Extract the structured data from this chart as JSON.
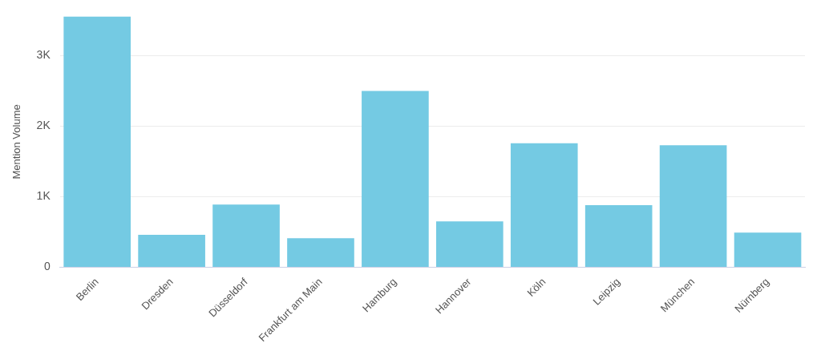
{
  "chart_data": {
    "type": "bar",
    "ylabel": "Mention Volume",
    "categories": [
      "Berlin",
      "Dresden",
      "Düsseldorf",
      "Frankfurt am Main",
      "Hamburg",
      "Hannover",
      "Köln",
      "Leipzig",
      "München",
      "Nürnberg"
    ],
    "values": [
      3560,
      460,
      890,
      410,
      2500,
      650,
      1760,
      880,
      1730,
      490
    ],
    "color": "#74cae3",
    "ylim": [
      0,
      3560
    ],
    "yticks": [
      0,
      {
        "value": 1000,
        "label": "1K"
      },
      {
        "value": 2000,
        "label": "2K"
      },
      {
        "value": 3000,
        "label": "3K"
      }
    ],
    "grid": "y"
  }
}
